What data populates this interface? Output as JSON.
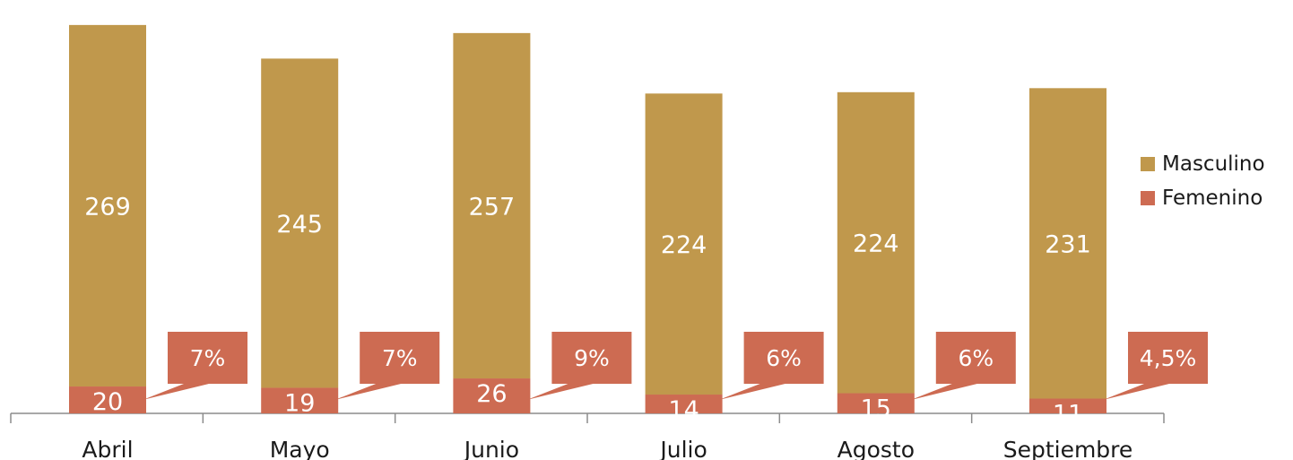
{
  "chart_data": {
    "type": "bar",
    "stacked": true,
    "categories": [
      "Abril",
      "Mayo",
      "Junio",
      "Julio",
      "Agosto",
      "Septiembre"
    ],
    "series": [
      {
        "name": "Femenino",
        "values": [
          20,
          19,
          26,
          14,
          15,
          11
        ],
        "color": "#cd6b52"
      },
      {
        "name": "Masculino",
        "values": [
          269,
          245,
          257,
          224,
          224,
          231
        ],
        "color": "#c0984c"
      }
    ],
    "callouts": [
      "7%",
      "7%",
      "9%",
      "6%",
      "6%",
      "4,5%"
    ],
    "legend_position": "right",
    "grid": false
  },
  "legend": {
    "items": [
      {
        "label": "Masculino",
        "color": "#c0984c"
      },
      {
        "label": "Femenino",
        "color": "#cd6b52"
      }
    ]
  }
}
